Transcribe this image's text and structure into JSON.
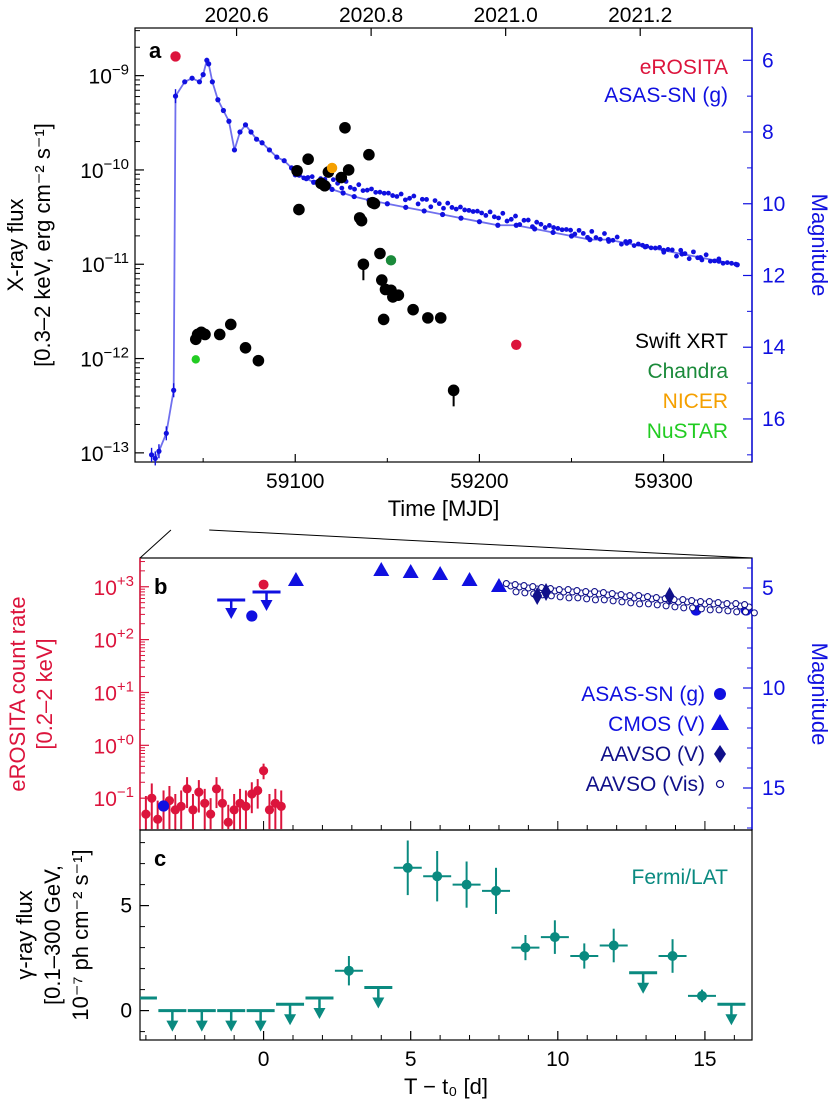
{
  "colors": {
    "black": "#000000",
    "blue": "#1010e0",
    "blueLine": "#7070ee",
    "navy": "#10108a",
    "crimson": "#dc143c",
    "green": "#1a8a3a",
    "orange": "#f5a000",
    "lime": "#22cc22",
    "teal": "#0a8a80"
  },
  "panels": {
    "a": {
      "letter": "a",
      "top_axis_ticks": [
        "2020.6",
        "2020.8",
        "2021.0",
        "2021.2"
      ],
      "x_ticks": [
        "59100",
        "59200",
        "59300"
      ],
      "xlabel": "Time [MJD]",
      "y_left_label_line1": "X-ray flux",
      "y_left_label_line2": "[0.3–2 keV, erg cm⁻² s⁻¹]",
      "y_left_tick_exponents": [
        "−9",
        "−10",
        "−11",
        "−12",
        "−13"
      ],
      "y_right_ticks": [
        "6",
        "8",
        "10",
        "12",
        "14",
        "16"
      ],
      "y_right_label": "Magnitude",
      "legend_top": [
        "eROSITA",
        "ASAS-SN (g)"
      ],
      "legend_bottom": [
        "Swift XRT",
        "Chandra",
        "NICER",
        "NuSTAR"
      ]
    },
    "b": {
      "letter": "b",
      "y_left_label_line1": "eROSITA count rate",
      "y_left_label_line2": "[0.2–2 keV]",
      "y_left_tick_exponents": [
        "+3",
        "+2",
        "+1",
        "+0",
        "−1"
      ],
      "y_right_ticks": [
        "5",
        "10",
        "15"
      ],
      "y_right_label": "Magnitude",
      "legend": [
        "ASAS-SN (g)",
        "CMOS (V)",
        "AAVSO (V)",
        "AAVSO (Vis)"
      ]
    },
    "c": {
      "letter": "c",
      "y_label_line1": "γ-ray flux",
      "y_label_line2": "[0.1–300 GeV,",
      "y_label_line3": "10⁻⁷ ph cm⁻² s⁻¹]",
      "y_ticks": [
        "0",
        "5"
      ],
      "x_ticks": [
        "0",
        "5",
        "10",
        "15"
      ],
      "xlabel": "T − t₀ [d]",
      "legend": "Fermi/LAT"
    }
  },
  "chart_data": [
    {
      "panel": "a",
      "type": "scatter",
      "x_axis": "MJD",
      "xlim": [
        59013,
        59348
      ],
      "y_left_scale": "log",
      "y_left_lim": [
        8e-14,
        3.2e-09
      ],
      "y_right_lim": [
        17.2,
        5.1
      ],
      "series": [
        {
          "name": "Swift XRT",
          "color": "black",
          "axis": "left",
          "points": [
            [
              59046,
              1.6e-12
            ],
            [
              59047,
              1.8e-12
            ],
            [
              59049,
              1.9e-12
            ],
            [
              59051,
              1.8e-12
            ],
            [
              59059,
              1.8e-12
            ],
            [
              59065,
              2.3e-12
            ],
            [
              59073,
              1.3e-12
            ],
            [
              59080,
              9.5e-13
            ],
            [
              59101,
              9.8e-11
            ],
            [
              59102,
              3.8e-11
            ],
            [
              59107,
              1.3e-10
            ],
            [
              59114,
              7.2e-11
            ],
            [
              59116,
              6.8e-11
            ],
            [
              59118,
              9.5e-11
            ],
            [
              59125,
              8.3e-11
            ],
            [
              59127,
              2.8e-10
            ],
            [
              59129,
              1e-10
            ],
            [
              59135,
              3.1e-11
            ],
            [
              59136,
              2.9e-11
            ],
            [
              59137,
              1e-11
            ],
            [
              59140,
              1.45e-10
            ],
            [
              59142,
              4.5e-11
            ],
            [
              59143,
              4.4e-11
            ],
            [
              59146,
              1.3e-11
            ],
            [
              59147,
              6.8e-12
            ],
            [
              59148,
              2.6e-12
            ],
            [
              59149,
              5.4e-12
            ],
            [
              59152,
              5.3e-12
            ],
            [
              59153,
              4.5e-12
            ],
            [
              59156,
              4.7e-12
            ],
            [
              59164,
              3.3e-12
            ],
            [
              59172,
              2.7e-12
            ],
            [
              59179,
              2.7e-12
            ],
            [
              59186,
              4.6e-13
            ]
          ]
        },
        {
          "name": "eROSITA",
          "color": "crimson",
          "axis": "left",
          "points": [
            [
              59035,
              1.6e-09
            ],
            [
              59220,
              1.4e-12
            ]
          ]
        },
        {
          "name": "Chandra",
          "color": "green",
          "axis": "left",
          "points": [
            [
              59152,
              1.1e-11
            ]
          ]
        },
        {
          "name": "NICER",
          "color": "orange",
          "axis": "left",
          "points": [
            [
              59120,
              1.05e-10
            ]
          ]
        },
        {
          "name": "NuSTAR",
          "color": "lime",
          "axis": "left",
          "points": [
            [
              59046,
              9.8e-13
            ]
          ]
        },
        {
          "name": "ASAS-SN (g)",
          "color": "blue",
          "axis": "right",
          "points": [
            [
              59022,
              17.0
            ],
            [
              59024,
              17.1
            ],
            [
              59026,
              16.9
            ],
            [
              59030,
              16.4
            ],
            [
              59034,
              15.2
            ],
            [
              59035,
              7.0
            ],
            [
              59040,
              6.6
            ],
            [
              59044,
              6.5
            ],
            [
              59048,
              6.6
            ],
            [
              59050,
              6.4
            ],
            [
              59052,
              6.0
            ],
            [
              59053,
              6.1
            ],
            [
              59055,
              6.6
            ],
            [
              59058,
              7.1
            ],
            [
              59061,
              7.4
            ],
            [
              59064,
              7.7
            ],
            [
              59067,
              8.5
            ],
            [
              59070,
              8.0
            ],
            [
              59073,
              7.8
            ],
            [
              59076,
              8.0
            ],
            [
              59079,
              8.2
            ],
            [
              59082,
              8.3
            ],
            [
              59086,
              8.5
            ],
            [
              59090,
              8.7
            ],
            [
              59094,
              8.8
            ],
            [
              59098,
              9.0
            ],
            [
              59102,
              9.2
            ],
            [
              59106,
              9.3
            ],
            [
              59110,
              9.4
            ],
            [
              59114,
              9.5
            ],
            [
              59120,
              9.6
            ],
            [
              59126,
              9.7
            ],
            [
              59132,
              9.8
            ],
            [
              59140,
              9.9
            ],
            [
              59150,
              10.0
            ],
            [
              59160,
              10.1
            ],
            [
              59170,
              10.2
            ],
            [
              59180,
              10.3
            ],
            [
              59190,
              10.4
            ],
            [
              59200,
              10.5
            ],
            [
              59210,
              10.6
            ],
            [
              59220,
              10.6
            ],
            [
              59230,
              10.7
            ],
            [
              59240,
              10.8
            ],
            [
              59250,
              10.9
            ],
            [
              59260,
              11.0
            ],
            [
              59270,
              11.0
            ],
            [
              59280,
              11.1
            ],
            [
              59290,
              11.2
            ],
            [
              59300,
              11.3
            ],
            [
              59310,
              11.4
            ],
            [
              59320,
              11.5
            ],
            [
              59330,
              11.6
            ],
            [
              59340,
              11.7
            ]
          ]
        }
      ]
    },
    {
      "panel": "b",
      "type": "scatter",
      "x_axis": "T - t0 [d]",
      "xlim": [
        -4.2,
        16.6
      ],
      "y_left_scale": "log",
      "y_left_lim": [
        0.025,
        3500
      ],
      "y_right_lim": [
        17.1,
        3.5
      ],
      "series": [
        {
          "name": "eROSITA",
          "color": "crimson",
          "axis": "left",
          "points": [
            [
              -4.0,
              0.05
            ],
            [
              -3.8,
              0.1
            ],
            [
              -3.6,
              0.04
            ],
            [
              -3.4,
              0.07
            ],
            [
              -3.2,
              0.09
            ],
            [
              -3.0,
              0.06
            ],
            [
              -2.8,
              0.07
            ],
            [
              -2.6,
              0.15
            ],
            [
              -2.4,
              0.06
            ],
            [
              -2.2,
              0.13
            ],
            [
              -2.0,
              0.08
            ],
            [
              -1.8,
              0.05
            ],
            [
              -1.6,
              0.15
            ],
            [
              -1.4,
              0.08
            ],
            [
              -1.2,
              0.035
            ],
            [
              -1.0,
              0.06
            ],
            [
              -0.8,
              0.08
            ],
            [
              -0.6,
              0.07
            ],
            [
              -0.4,
              0.12
            ],
            [
              -0.2,
              0.14
            ],
            [
              0.0,
              0.33
            ],
            [
              0.2,
              0.06
            ],
            [
              0.4,
              0.08
            ],
            [
              0.6,
              0.07
            ]
          ],
          "errors": [
            0.06,
            0.09,
            0.05,
            0.07,
            0.08,
            0.06,
            0.07,
            0.1,
            0.06,
            0.09,
            0.07,
            0.05,
            0.1,
            0.07,
            0.04,
            0.06,
            0.07,
            0.07,
            0.08,
            0.09,
            0.12,
            0.06,
            0.07,
            0.07
          ],
          "extra": [
            [
              0.0,
              1100
            ]
          ]
        },
        {
          "name": "ASAS-SN (g)",
          "color": "blue",
          "axis": "right",
          "points": [
            [
              -3.4,
              15.9
            ],
            [
              -0.4,
              6.4
            ],
            [
              14.7,
              6.1
            ],
            [
              16.4,
              6.1
            ]
          ]
        },
        {
          "name": "ASAS-SN (g) upper limits",
          "color": "blue",
          "axis": "right",
          "upper_limits": [
            [
              -1.1,
              5.6
            ],
            [
              0.1,
              5.2
            ]
          ]
        },
        {
          "name": "CMOS (V)",
          "color": "blue",
          "axis": "right",
          "points": [
            [
              1.1,
              4.6
            ],
            [
              4.0,
              4.1
            ],
            [
              5.0,
              4.2
            ],
            [
              6.0,
              4.3
            ],
            [
              7.0,
              4.6
            ],
            [
              8.0,
              4.9
            ]
          ]
        },
        {
          "name": "AAVSO (V)",
          "color": "navy",
          "axis": "right",
          "points": [
            [
              9.3,
              5.4
            ],
            [
              9.6,
              5.2
            ],
            [
              13.8,
              5.4
            ]
          ]
        },
        {
          "name": "AAVSO (Vis)",
          "color": "navy",
          "axis": "right",
          "points": [
            [
              8.4,
              4.9
            ],
            [
              8.7,
              4.95
            ],
            [
              9.0,
              5.0
            ],
            [
              9.3,
              5.05
            ],
            [
              9.6,
              5.1
            ],
            [
              9.9,
              5.15
            ],
            [
              10.2,
              5.2
            ],
            [
              10.5,
              5.2
            ],
            [
              10.8,
              5.25
            ],
            [
              11.1,
              5.3
            ],
            [
              11.4,
              5.3
            ],
            [
              11.7,
              5.35
            ],
            [
              12.0,
              5.4
            ],
            [
              12.3,
              5.45
            ],
            [
              12.6,
              5.5
            ],
            [
              12.9,
              5.5
            ],
            [
              13.2,
              5.55
            ],
            [
              13.5,
              5.6
            ],
            [
              13.8,
              5.65
            ],
            [
              14.1,
              5.7
            ],
            [
              14.4,
              5.7
            ],
            [
              14.7,
              5.75
            ],
            [
              15.0,
              5.8
            ],
            [
              15.3,
              5.8
            ],
            [
              15.6,
              5.85
            ],
            [
              15.9,
              5.9
            ],
            [
              16.2,
              5.9
            ],
            [
              16.5,
              5.95
            ]
          ]
        }
      ]
    },
    {
      "panel": "c",
      "type": "scatter",
      "x_axis": "T - t0 [d]",
      "xlim": [
        -4.2,
        16.6
      ],
      "ylim": [
        -1.4,
        8.6
      ],
      "series": [
        {
          "name": "Fermi/LAT",
          "color": "teal",
          "points": [
            [
              2.9,
              1.9,
              0.7
            ],
            [
              4.9,
              6.8,
              1.3
            ],
            [
              5.9,
              6.4,
              1.2
            ],
            [
              6.9,
              6.0,
              1.1
            ],
            [
              7.9,
              5.7,
              1.1
            ],
            [
              8.9,
              3.0,
              0.6
            ],
            [
              9.9,
              3.5,
              0.8
            ],
            [
              10.9,
              2.6,
              0.6
            ],
            [
              11.9,
              3.1,
              0.8
            ],
            [
              13.9,
              2.6,
              0.8
            ],
            [
              14.9,
              0.7,
              0.3
            ]
          ],
          "upper_limits": [
            [
              -4.1,
              0.6
            ],
            [
              -3.1,
              0.0
            ],
            [
              -2.1,
              0.0
            ],
            [
              -1.1,
              0.0
            ],
            [
              -0.1,
              0.0
            ],
            [
              0.9,
              0.3
            ],
            [
              1.9,
              0.6
            ],
            [
              3.9,
              1.1
            ],
            [
              12.9,
              1.8
            ],
            [
              15.9,
              0.3
            ],
            [
              16.9,
              0.3
            ]
          ]
        }
      ]
    }
  ]
}
